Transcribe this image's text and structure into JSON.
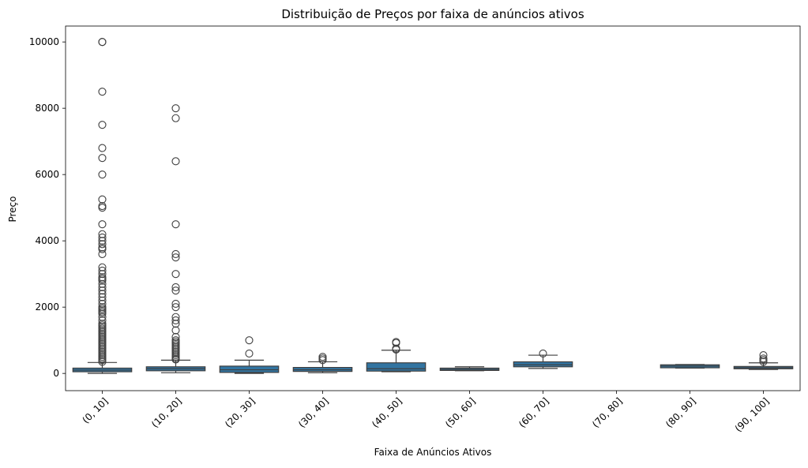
{
  "chart_data": {
    "type": "box",
    "title": "Distribuição de Preços por faixa de anúncios ativos",
    "xlabel": "Faixa de Anúncios Ativos",
    "ylabel": "Preço",
    "categories": [
      "(0, 10]",
      "(10, 20]",
      "(20, 30]",
      "(30, 40]",
      "(40, 50]",
      "(50, 60]",
      "(60, 70]",
      "(70, 80]",
      "(80, 90]",
      "(90, 100]"
    ],
    "yticks": [
      0,
      2000,
      4000,
      6000,
      8000,
      10000
    ],
    "ylim": [
      -520,
      10480
    ],
    "grid": false,
    "box_color": "#3274a1",
    "edge_color": "#3f3f3f",
    "boxes": [
      {
        "category": "(0, 10]",
        "whisker_low": 0,
        "q1": 50,
        "median": 100,
        "q3": 160,
        "whisker_high": 330,
        "outliers": [
          10000,
          10000,
          8500,
          7500,
          6800,
          6500,
          6000,
          5250,
          5050,
          5000,
          4500,
          4200,
          4100,
          4000,
          3900,
          3800,
          3750,
          3600,
          3200,
          3100,
          3000,
          2900,
          2850,
          2800,
          2700,
          2600,
          2500,
          2400,
          2300,
          2200,
          2100,
          2000,
          1950,
          1900,
          1850,
          1800,
          1700,
          1600,
          1500,
          1450,
          1400,
          1350,
          1300,
          1250,
          1200,
          1150,
          1100,
          1050,
          1000,
          950,
          900,
          850,
          800,
          750,
          700,
          650,
          600,
          550,
          500,
          450,
          400,
          350
        ]
      },
      {
        "category": "(10, 20]",
        "whisker_low": 20,
        "q1": 80,
        "median": 140,
        "q3": 200,
        "whisker_high": 400,
        "outliers": [
          8000,
          7700,
          6400,
          4500,
          3600,
          3500,
          3000,
          2600,
          2500,
          2100,
          2000,
          1700,
          1600,
          1500,
          1300,
          1100,
          1000,
          950,
          900,
          850,
          800,
          750,
          700,
          650,
          600,
          550,
          500,
          450,
          420
        ]
      },
      {
        "category": "(20, 30]",
        "whisker_low": 0,
        "q1": 30,
        "median": 110,
        "q3": 220,
        "whisker_high": 400,
        "outliers": [
          1000,
          600
        ]
      },
      {
        "category": "(30, 40]",
        "whisker_low": 20,
        "q1": 60,
        "median": 110,
        "q3": 180,
        "whisker_high": 350,
        "outliers": [
          500,
          450,
          400
        ]
      },
      {
        "category": "(40, 50]",
        "whisker_low": 50,
        "q1": 70,
        "median": 140,
        "q3": 320,
        "whisker_high": 700,
        "outliers": [
          950,
          920,
          750,
          720
        ]
      },
      {
        "category": "(50, 60]",
        "whisker_low": 80,
        "q1": 90,
        "median": 120,
        "q3": 160,
        "whisker_high": 200,
        "outliers": []
      },
      {
        "category": "(60, 70]",
        "whisker_low": 150,
        "q1": 200,
        "median": 260,
        "q3": 350,
        "whisker_high": 550,
        "outliers": [
          600
        ]
      },
      {
        "category": "(70, 80]",
        "empty": true
      },
      {
        "category": "(80, 90]",
        "whisker_low": 160,
        "q1": 170,
        "median": 220,
        "q3": 260,
        "whisker_high": 270,
        "outliers": []
      },
      {
        "category": "(90, 100]",
        "whisker_low": 120,
        "q1": 140,
        "median": 170,
        "q3": 210,
        "whisker_high": 320,
        "outliers": [
          550,
          450,
          400,
          350
        ]
      }
    ]
  }
}
